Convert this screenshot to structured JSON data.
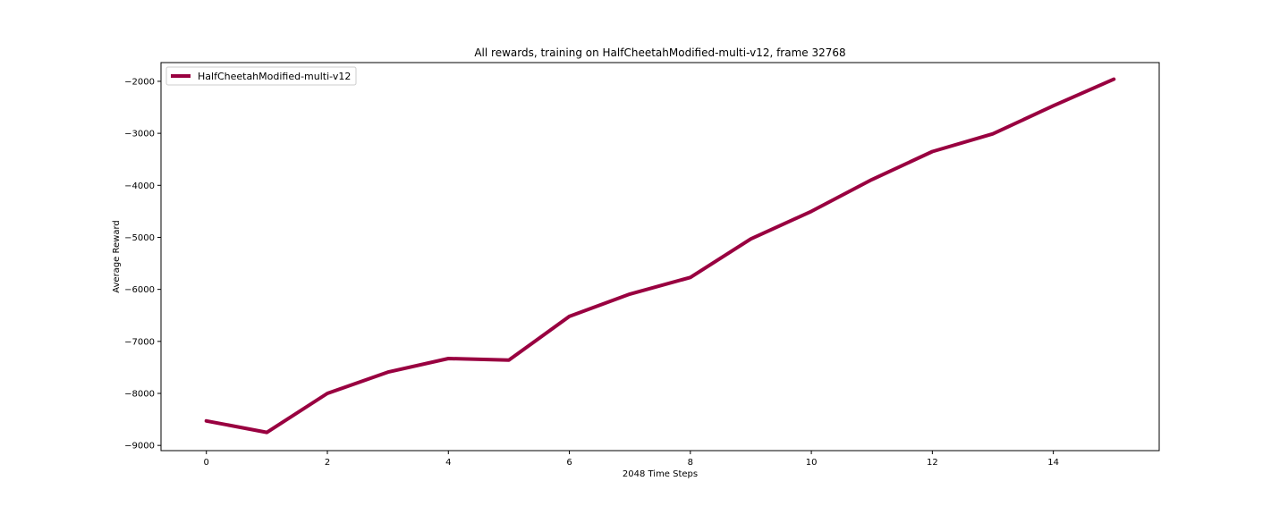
{
  "chart_data": {
    "type": "line",
    "title": "All rewards, training on HalfCheetahModified-multi-v12, frame 32768",
    "xlabel": "2048 Time Steps",
    "ylabel": "Average Reward",
    "xlim": [
      -0.75,
      15.75
    ],
    "ylim": [
      -9100,
      -1640
    ],
    "xticks": [
      0,
      2,
      4,
      6,
      8,
      10,
      12,
      14
    ],
    "yticks": [
      -9000,
      -8000,
      -7000,
      -6000,
      -5000,
      -4000,
      -3000,
      -2000
    ],
    "grid": false,
    "legend_position": "top-left",
    "series": [
      {
        "name": "HalfCheetahModified-multi-v12",
        "color": "#990040",
        "x": [
          0,
          1,
          2,
          3,
          4,
          5,
          6,
          7,
          8,
          9,
          10,
          11,
          12,
          13,
          14,
          15
        ],
        "y": [
          -8530,
          -8750,
          -8000,
          -7590,
          -7330,
          -7360,
          -6520,
          -6090,
          -5770,
          -5030,
          -4500,
          -3890,
          -3350,
          -3010,
          -2470,
          -1960
        ]
      }
    ]
  }
}
